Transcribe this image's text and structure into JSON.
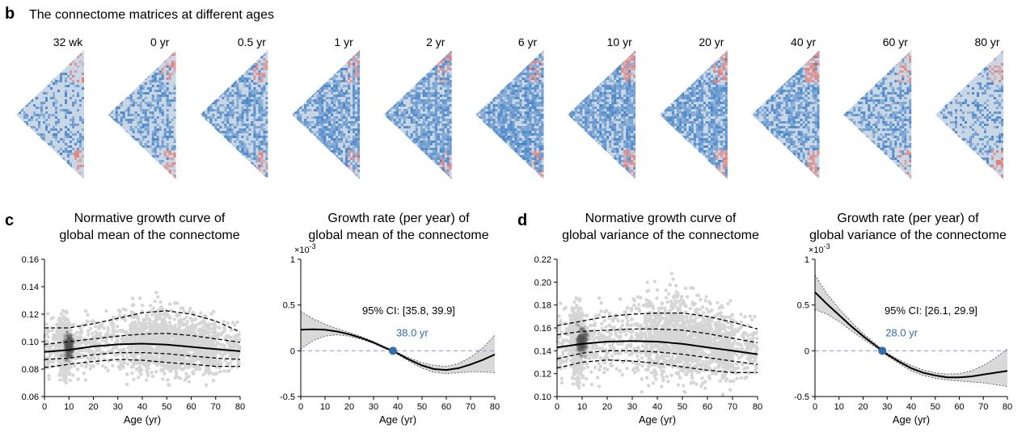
{
  "panel_b": {
    "letter": "b",
    "title": "The connectome matrices at different ages",
    "ages": [
      "32 wk",
      "0 yr",
      "0.5 yr",
      "1 yr",
      "2 yr",
      "6 yr",
      "10 yr",
      "20 yr",
      "40 yr",
      "60 yr",
      "80 yr"
    ],
    "matrix_colors": {
      "low": "#3a7cc4",
      "mid": "#c9d6e6",
      "high": "#e4736a"
    }
  },
  "panel_c": {
    "letter": "c"
  },
  "panel_d": {
    "letter": "d"
  },
  "chart_data": [
    {
      "id": "c_mean_growth",
      "type": "scatter",
      "title": "Normative growth curve of\nglobal mean of the connectome",
      "title_lines": [
        "Normative growth curve of",
        "global mean of the connectome"
      ],
      "xlabel": "Age (yr)",
      "ylabel": "",
      "xlim": [
        0,
        80
      ],
      "ylim": [
        0.06,
        0.16
      ],
      "xticks": [
        0,
        10,
        20,
        30,
        40,
        50,
        60,
        70,
        80
      ],
      "yticks": [
        0.06,
        0.08,
        0.1,
        0.12,
        0.14,
        0.16
      ],
      "ytick_labels": [
        "0.06",
        "0.08",
        "0.10",
        "0.12",
        "0.14",
        "0.16"
      ],
      "series": [
        {
          "name": "median",
          "style": "solid",
          "x": [
            0,
            10,
            20,
            30,
            40,
            50,
            60,
            70,
            80
          ],
          "values": [
            0.0925,
            0.094,
            0.0965,
            0.098,
            0.0985,
            0.0978,
            0.0962,
            0.0945,
            0.093
          ]
        },
        {
          "name": "p25",
          "style": "dashed",
          "x": [
            0,
            10,
            20,
            30,
            40,
            50,
            60,
            70,
            80
          ],
          "values": [
            0.087,
            0.088,
            0.0905,
            0.092,
            0.092,
            0.0912,
            0.0895,
            0.088,
            0.087
          ]
        },
        {
          "name": "p75",
          "style": "dashed",
          "x": [
            0,
            10,
            20,
            30,
            40,
            50,
            60,
            70,
            80
          ],
          "values": [
            0.098,
            0.1,
            0.102,
            0.104,
            0.1055,
            0.106,
            0.1045,
            0.102,
            0.0995
          ]
        },
        {
          "name": "p2.5",
          "style": "dashed",
          "x": [
            0,
            10,
            20,
            30,
            40,
            50,
            60,
            70,
            80
          ],
          "values": [
            0.081,
            0.0835,
            0.0855,
            0.087,
            0.0865,
            0.0848,
            0.0835,
            0.082,
            0.082
          ]
        },
        {
          "name": "p97.5",
          "style": "dashed",
          "x": [
            0,
            10,
            20,
            30,
            40,
            50,
            60,
            70,
            80
          ],
          "values": [
            0.11,
            0.11,
            0.113,
            0.117,
            0.121,
            0.1225,
            0.12,
            0.115,
            0.107
          ]
        }
      ],
      "scatter_cloud": {
        "mean": [
          0.096,
          0.097,
          0.099,
          0.1,
          0.1,
          0.099,
          0.098,
          0.097,
          0.095
        ],
        "spread": [
          0.022,
          0.02,
          0.018,
          0.02,
          0.022,
          0.022,
          0.02,
          0.018,
          0.016
        ],
        "count": 3000
      }
    },
    {
      "id": "c_mean_rate",
      "type": "line",
      "title": "Growth rate (per year) of\nglobal mean of the connectome",
      "title_lines": [
        "Growth rate (per year) of",
        "global mean of the connectome"
      ],
      "xlabel": "Age (yr)",
      "ylabel": "",
      "scale_label": "×10",
      "scale_exp": "-3",
      "xlim": [
        0,
        80
      ],
      "ylim": [
        -0.5,
        1
      ],
      "xticks": [
        0,
        10,
        20,
        30,
        40,
        50,
        60,
        70,
        80
      ],
      "yticks": [
        -0.5,
        0,
        0.5,
        1
      ],
      "ytick_labels": [
        "-0.5",
        "0",
        "0.5",
        "1"
      ],
      "series": [
        {
          "name": "rate",
          "x": [
            0,
            5,
            10,
            15,
            20,
            25,
            30,
            35,
            38,
            40,
            45,
            50,
            55,
            60,
            65,
            70,
            75,
            80
          ],
          "values": [
            0.23,
            0.235,
            0.23,
            0.21,
            0.18,
            0.14,
            0.09,
            0.03,
            0.0,
            -0.03,
            -0.1,
            -0.16,
            -0.2,
            -0.21,
            -0.19,
            -0.15,
            -0.1,
            -0.04
          ]
        },
        {
          "name": "ci_upper",
          "x": [
            0,
            5,
            10,
            15,
            20,
            25,
            30,
            35,
            38,
            40,
            45,
            50,
            55,
            60,
            65,
            70,
            75,
            80
          ],
          "values": [
            0.43,
            0.35,
            0.29,
            0.24,
            0.2,
            0.155,
            0.1,
            0.04,
            0.005,
            -0.02,
            -0.08,
            -0.13,
            -0.16,
            -0.17,
            -0.14,
            -0.07,
            0.03,
            0.17
          ]
        },
        {
          "name": "ci_lower",
          "x": [
            0,
            5,
            10,
            15,
            20,
            25,
            30,
            35,
            38,
            40,
            45,
            50,
            55,
            60,
            65,
            70,
            75,
            80
          ],
          "values": [
            0.02,
            0.11,
            0.16,
            0.175,
            0.16,
            0.125,
            0.08,
            0.02,
            -0.005,
            -0.04,
            -0.12,
            -0.19,
            -0.235,
            -0.25,
            -0.24,
            -0.23,
            -0.23,
            -0.24
          ]
        }
      ],
      "zero_line": 0,
      "marker": {
        "x": 38.0,
        "y": 0,
        "label": "38.0 yr"
      },
      "ci_text": "95% CI: [35.8, 39.9]"
    },
    {
      "id": "d_var_growth",
      "type": "scatter",
      "title": "Normative growth curve of\nglobal variance of the connectome",
      "title_lines": [
        "Normative growth curve of",
        "global variance of the connectome"
      ],
      "xlabel": "Age (yr)",
      "ylabel": "",
      "xlim": [
        0,
        80
      ],
      "ylim": [
        0.1,
        0.22
      ],
      "xticks": [
        0,
        10,
        20,
        30,
        40,
        50,
        60,
        70,
        80
      ],
      "yticks": [
        0.1,
        0.12,
        0.14,
        0.16,
        0.18,
        0.2,
        0.22
      ],
      "ytick_labels": [
        "0.10",
        "0.12",
        "0.14",
        "0.16",
        "0.18",
        "0.20",
        "0.22"
      ],
      "series": [
        {
          "name": "median",
          "style": "solid",
          "x": [
            0,
            10,
            20,
            30,
            40,
            50,
            60,
            70,
            80
          ],
          "values": [
            0.143,
            0.146,
            0.148,
            0.1485,
            0.148,
            0.146,
            0.143,
            0.14,
            0.137
          ]
        },
        {
          "name": "p25",
          "style": "dashed",
          "x": [
            0,
            10,
            20,
            30,
            40,
            50,
            60,
            70,
            80
          ],
          "values": [
            0.133,
            0.138,
            0.14,
            0.14,
            0.139,
            0.137,
            0.134,
            0.131,
            0.128
          ]
        },
        {
          "name": "p75",
          "style": "dashed",
          "x": [
            0,
            10,
            20,
            30,
            40,
            50,
            60,
            70,
            80
          ],
          "values": [
            0.154,
            0.157,
            0.158,
            0.159,
            0.159,
            0.158,
            0.155,
            0.151,
            0.147
          ]
        },
        {
          "name": "p2.5",
          "style": "dashed",
          "x": [
            0,
            10,
            20,
            30,
            40,
            50,
            60,
            70,
            80
          ],
          "values": [
            0.125,
            0.13,
            0.132,
            0.131,
            0.129,
            0.126,
            0.123,
            0.121,
            0.121
          ]
        },
        {
          "name": "p97.5",
          "style": "dashed",
          "x": [
            0,
            10,
            20,
            30,
            40,
            50,
            60,
            70,
            80
          ],
          "values": [
            0.162,
            0.166,
            0.17,
            0.172,
            0.173,
            0.173,
            0.17,
            0.165,
            0.159
          ]
        }
      ],
      "scatter_cloud": {
        "mean": [
          0.146,
          0.148,
          0.15,
          0.151,
          0.152,
          0.151,
          0.148,
          0.145,
          0.141
        ],
        "spread": [
          0.032,
          0.03,
          0.028,
          0.03,
          0.034,
          0.034,
          0.03,
          0.028,
          0.024
        ],
        "count": 3000
      }
    },
    {
      "id": "d_var_rate",
      "type": "line",
      "title": "Growth rate (per year) of\nglobal variance of the connectome",
      "title_lines": [
        "Growth rate (per year) of",
        "global variance of the connectome"
      ],
      "xlabel": "Age (yr)",
      "ylabel": "",
      "scale_label": "×10",
      "scale_exp": "-3",
      "xlim": [
        0,
        80
      ],
      "ylim": [
        -0.5,
        1
      ],
      "xticks": [
        0,
        10,
        20,
        30,
        40,
        50,
        60,
        70,
        80
      ],
      "yticks": [
        -0.5,
        0,
        0.5,
        1
      ],
      "ytick_labels": [
        "-0.5",
        "0",
        "0.5",
        "1"
      ],
      "series": [
        {
          "name": "rate",
          "x": [
            0,
            5,
            10,
            15,
            20,
            25,
            28,
            30,
            35,
            40,
            45,
            50,
            55,
            60,
            65,
            70,
            75,
            80
          ],
          "values": [
            0.64,
            0.51,
            0.39,
            0.27,
            0.16,
            0.06,
            0.0,
            -0.04,
            -0.12,
            -0.19,
            -0.24,
            -0.27,
            -0.29,
            -0.29,
            -0.28,
            -0.26,
            -0.24,
            -0.22
          ]
        },
        {
          "name": "ci_upper",
          "x": [
            0,
            5,
            10,
            15,
            20,
            25,
            28,
            30,
            35,
            40,
            45,
            50,
            55,
            60,
            65,
            70,
            75,
            80
          ],
          "values": [
            0.83,
            0.62,
            0.46,
            0.32,
            0.19,
            0.08,
            0.015,
            -0.025,
            -0.1,
            -0.16,
            -0.21,
            -0.24,
            -0.255,
            -0.25,
            -0.22,
            -0.16,
            -0.08,
            0.02
          ]
        },
        {
          "name": "ci_lower",
          "x": [
            0,
            5,
            10,
            15,
            20,
            25,
            28,
            30,
            35,
            40,
            45,
            50,
            55,
            60,
            65,
            70,
            75,
            80
          ],
          "values": [
            0.45,
            0.4,
            0.32,
            0.22,
            0.13,
            0.04,
            -0.015,
            -0.055,
            -0.14,
            -0.22,
            -0.27,
            -0.3,
            -0.32,
            -0.33,
            -0.34,
            -0.35,
            -0.37,
            -0.39
          ]
        }
      ],
      "zero_line": 0,
      "marker": {
        "x": 28.0,
        "y": 0,
        "label": "28.0 yr"
      },
      "ci_text": "95% CI: [26.1, 29.9]"
    }
  ]
}
